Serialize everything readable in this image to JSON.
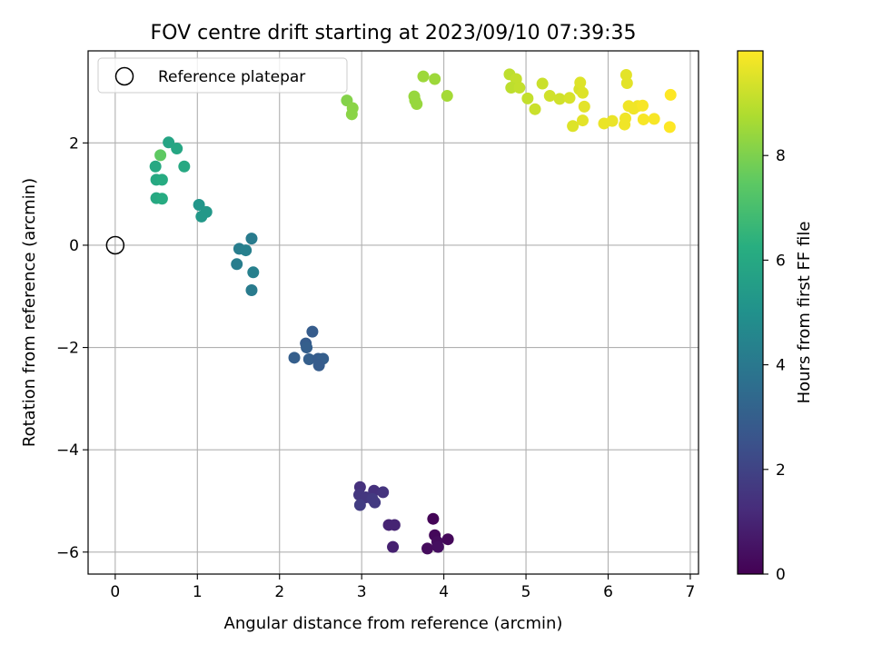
{
  "chart_data": {
    "type": "scatter",
    "title": "FOV centre drift starting at 2023/09/10 07:39:35",
    "xlabel": "Angular distance from reference (arcmin)",
    "ylabel": "Rotation from reference (arcmin)",
    "xlim": [
      -0.33,
      7.1
    ],
    "ylim": [
      -6.43,
      3.8
    ],
    "xticks": [
      0,
      1,
      2,
      3,
      4,
      5,
      6,
      7
    ],
    "yticks": [
      -6,
      -4,
      -2,
      0,
      2
    ],
    "grid": true,
    "legend": {
      "position": "upper-left",
      "entries": [
        "Reference platepar"
      ]
    },
    "colorbar": {
      "label": "Hours from first FF file",
      "min": 0,
      "max": 10,
      "ticks": [
        0,
        2,
        4,
        6,
        8
      ],
      "colormap": "viridis"
    },
    "reference_point": {
      "x": 0,
      "y": 0
    },
    "points": [
      {
        "x": 3.87,
        "y": -5.35,
        "h": 0.1
      },
      {
        "x": 3.89,
        "y": -5.67,
        "h": 0.2
      },
      {
        "x": 4.05,
        "y": -5.75,
        "h": 0.2
      },
      {
        "x": 3.92,
        "y": -5.8,
        "h": 0.3
      },
      {
        "x": 3.8,
        "y": -5.93,
        "h": 0.3
      },
      {
        "x": 3.93,
        "y": -5.9,
        "h": 0.4
      },
      {
        "x": 3.38,
        "y": -5.9,
        "h": 0.9
      },
      {
        "x": 3.33,
        "y": -5.47,
        "h": 1.0
      },
      {
        "x": 3.4,
        "y": -5.47,
        "h": 1.0
      },
      {
        "x": 2.98,
        "y": -4.73,
        "h": 1.4
      },
      {
        "x": 3.15,
        "y": -4.8,
        "h": 1.4
      },
      {
        "x": 3.26,
        "y": -4.83,
        "h": 1.5
      },
      {
        "x": 2.97,
        "y": -4.88,
        "h": 1.6
      },
      {
        "x": 3.05,
        "y": -4.93,
        "h": 1.6
      },
      {
        "x": 3.13,
        "y": -4.96,
        "h": 1.7
      },
      {
        "x": 3.16,
        "y": -5.03,
        "h": 1.7
      },
      {
        "x": 2.98,
        "y": -5.08,
        "h": 1.8
      },
      {
        "x": 2.4,
        "y": -1.69,
        "h": 2.9
      },
      {
        "x": 2.32,
        "y": -1.92,
        "h": 2.9
      },
      {
        "x": 2.33,
        "y": -2.0,
        "h": 3.0
      },
      {
        "x": 2.18,
        "y": -2.2,
        "h": 3.0
      },
      {
        "x": 2.36,
        "y": -2.23,
        "h": 3.0
      },
      {
        "x": 2.47,
        "y": -2.22,
        "h": 2.9
      },
      {
        "x": 2.53,
        "y": -2.22,
        "h": 3.0
      },
      {
        "x": 2.48,
        "y": -2.35,
        "h": 2.9
      },
      {
        "x": 1.66,
        "y": 0.13,
        "h": 4.1
      },
      {
        "x": 1.51,
        "y": -0.07,
        "h": 4.2
      },
      {
        "x": 1.59,
        "y": -0.1,
        "h": 4.3
      },
      {
        "x": 1.48,
        "y": -0.37,
        "h": 4.2
      },
      {
        "x": 1.68,
        "y": -0.53,
        "h": 4.3
      },
      {
        "x": 1.66,
        "y": -0.88,
        "h": 4.1
      },
      {
        "x": 1.02,
        "y": 0.79,
        "h": 5.2
      },
      {
        "x": 1.11,
        "y": 0.65,
        "h": 5.3
      },
      {
        "x": 1.05,
        "y": 0.56,
        "h": 5.3
      },
      {
        "x": 0.65,
        "y": 2.01,
        "h": 5.8
      },
      {
        "x": 0.75,
        "y": 1.89,
        "h": 5.9
      },
      {
        "x": 0.84,
        "y": 1.54,
        "h": 6.0
      },
      {
        "x": 0.49,
        "y": 1.54,
        "h": 6.0
      },
      {
        "x": 0.5,
        "y": 1.28,
        "h": 6.0
      },
      {
        "x": 0.57,
        "y": 1.28,
        "h": 6.1
      },
      {
        "x": 0.5,
        "y": 0.92,
        "h": 6.0
      },
      {
        "x": 0.57,
        "y": 0.91,
        "h": 6.1
      },
      {
        "x": 0.55,
        "y": 1.76,
        "h": 7.5
      },
      {
        "x": 2.82,
        "y": 2.83,
        "h": 8.1
      },
      {
        "x": 2.89,
        "y": 2.68,
        "h": 8.2
      },
      {
        "x": 2.88,
        "y": 2.56,
        "h": 8.2
      },
      {
        "x": 3.64,
        "y": 2.91,
        "h": 8.4
      },
      {
        "x": 3.65,
        "y": 2.83,
        "h": 8.4
      },
      {
        "x": 3.67,
        "y": 2.76,
        "h": 8.4
      },
      {
        "x": 3.75,
        "y": 3.3,
        "h": 8.5
      },
      {
        "x": 3.89,
        "y": 3.25,
        "h": 8.5
      },
      {
        "x": 4.04,
        "y": 2.92,
        "h": 8.6
      },
      {
        "x": 4.8,
        "y": 3.34,
        "h": 9.0
      },
      {
        "x": 4.88,
        "y": 3.25,
        "h": 9.1
      },
      {
        "x": 4.82,
        "y": 3.08,
        "h": 9.0
      },
      {
        "x": 4.92,
        "y": 3.08,
        "h": 9.1
      },
      {
        "x": 5.02,
        "y": 2.87,
        "h": 9.1
      },
      {
        "x": 5.11,
        "y": 2.66,
        "h": 9.2
      },
      {
        "x": 5.2,
        "y": 3.16,
        "h": 9.2
      },
      {
        "x": 5.29,
        "y": 2.92,
        "h": 9.3
      },
      {
        "x": 5.41,
        "y": 2.86,
        "h": 9.3
      },
      {
        "x": 5.53,
        "y": 2.88,
        "h": 9.4
      },
      {
        "x": 5.57,
        "y": 2.33,
        "h": 9.5
      },
      {
        "x": 5.65,
        "y": 3.05,
        "h": 9.4
      },
      {
        "x": 5.66,
        "y": 3.18,
        "h": 9.5
      },
      {
        "x": 5.69,
        "y": 2.98,
        "h": 9.5
      },
      {
        "x": 5.69,
        "y": 2.44,
        "h": 9.6
      },
      {
        "x": 5.71,
        "y": 2.71,
        "h": 9.6
      },
      {
        "x": 5.95,
        "y": 2.38,
        "h": 9.7
      },
      {
        "x": 6.05,
        "y": 2.43,
        "h": 9.7
      },
      {
        "x": 6.2,
        "y": 2.36,
        "h": 9.8
      },
      {
        "x": 6.21,
        "y": 2.48,
        "h": 9.8
      },
      {
        "x": 6.22,
        "y": 3.33,
        "h": 9.6
      },
      {
        "x": 6.23,
        "y": 3.17,
        "h": 9.6
      },
      {
        "x": 6.25,
        "y": 2.72,
        "h": 9.8
      },
      {
        "x": 6.31,
        "y": 2.67,
        "h": 9.8
      },
      {
        "x": 6.36,
        "y": 2.72,
        "h": 9.8
      },
      {
        "x": 6.42,
        "y": 2.73,
        "h": 9.9
      },
      {
        "x": 6.43,
        "y": 2.46,
        "h": 9.9
      },
      {
        "x": 6.56,
        "y": 2.47,
        "h": 9.9
      },
      {
        "x": 6.76,
        "y": 2.94,
        "h": 10.0
      },
      {
        "x": 6.75,
        "y": 2.31,
        "h": 10.0
      }
    ]
  }
}
